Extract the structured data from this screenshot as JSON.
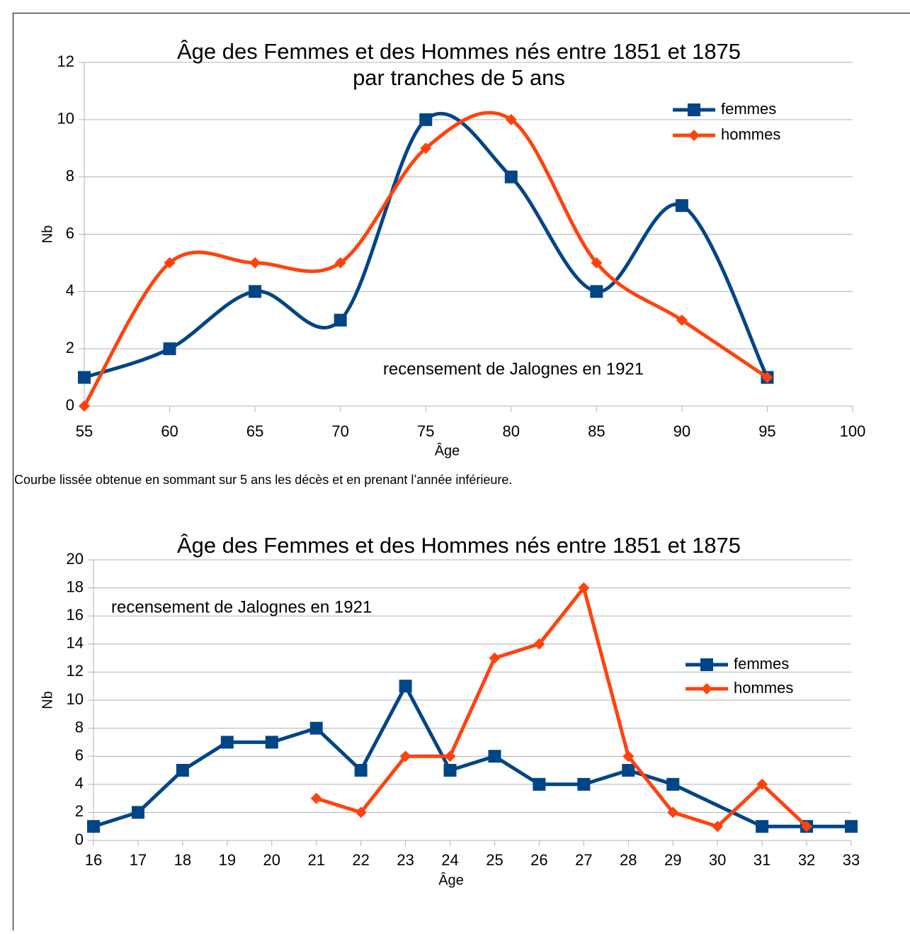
{
  "chart_data": [
    {
      "type": "line",
      "smooth": true,
      "title": "Âge des Femmes et des Hommes nés entre 1851 et 1875",
      "subtitle": "par tranches de 5 ans",
      "annotation": "recensement de Jalognes en 1921",
      "x_label": "Âge",
      "y_label": "Nb",
      "xlim": [
        55,
        100
      ],
      "xticks": [
        55,
        60,
        65,
        70,
        75,
        80,
        85,
        90,
        95,
        100
      ],
      "ylim": [
        0,
        12
      ],
      "yticks": [
        0,
        2,
        4,
        6,
        8,
        10,
        12
      ],
      "grid": true,
      "legend": "top-right",
      "series": [
        {
          "name": "femmes",
          "color": "#004586",
          "marker": "square",
          "x": [
            55,
            60,
            65,
            70,
            75,
            80,
            85,
            90,
            95
          ],
          "values": [
            1,
            2,
            4,
            3,
            10,
            8,
            4,
            7,
            1
          ]
        },
        {
          "name": "hommes",
          "color": "#ff420e",
          "marker": "diamond",
          "x": [
            55,
            60,
            65,
            70,
            75,
            80,
            85,
            90,
            95
          ],
          "values": [
            0,
            5,
            5,
            5,
            9,
            10,
            5,
            3,
            1
          ]
        }
      ]
    },
    {
      "type": "line",
      "smooth": false,
      "title": "Âge des Femmes et des Hommes nés entre 1851 et 1875",
      "annotation": "recensement de Jalognes en 1921",
      "x_label": "Âge",
      "y_label": "Nb",
      "xlim": [
        16,
        33
      ],
      "xticks": [
        16,
        17,
        18,
        19,
        20,
        21,
        22,
        23,
        24,
        25,
        26,
        27,
        28,
        29,
        30,
        31,
        32,
        33
      ],
      "ylim": [
        0,
        20
      ],
      "yticks": [
        0,
        2,
        4,
        6,
        8,
        10,
        12,
        14,
        16,
        18,
        20
      ],
      "grid": true,
      "legend": "right",
      "series": [
        {
          "name": "femmes",
          "color": "#004586",
          "marker": "square",
          "x": [
            16,
            17,
            18,
            19,
            20,
            21,
            22,
            23,
            24,
            25,
            26,
            27,
            28,
            29,
            31,
            32,
            33
          ],
          "values": [
            1,
            2,
            5,
            7,
            7,
            8,
            5,
            11,
            5,
            6,
            4,
            4,
            5,
            4,
            1,
            1,
            1
          ]
        },
        {
          "name": "hommes",
          "color": "#ff420e",
          "marker": "diamond",
          "x": [
            21,
            22,
            23,
            24,
            25,
            26,
            27,
            28,
            29,
            30,
            31,
            32
          ],
          "values": [
            3,
            2,
            6,
            6,
            13,
            14,
            18,
            6,
            2,
            1,
            4,
            1
          ]
        }
      ]
    }
  ],
  "caption": "Courbe lissée obtenue en sommant sur 5 ans les décès et en prenant l’année inférieure."
}
